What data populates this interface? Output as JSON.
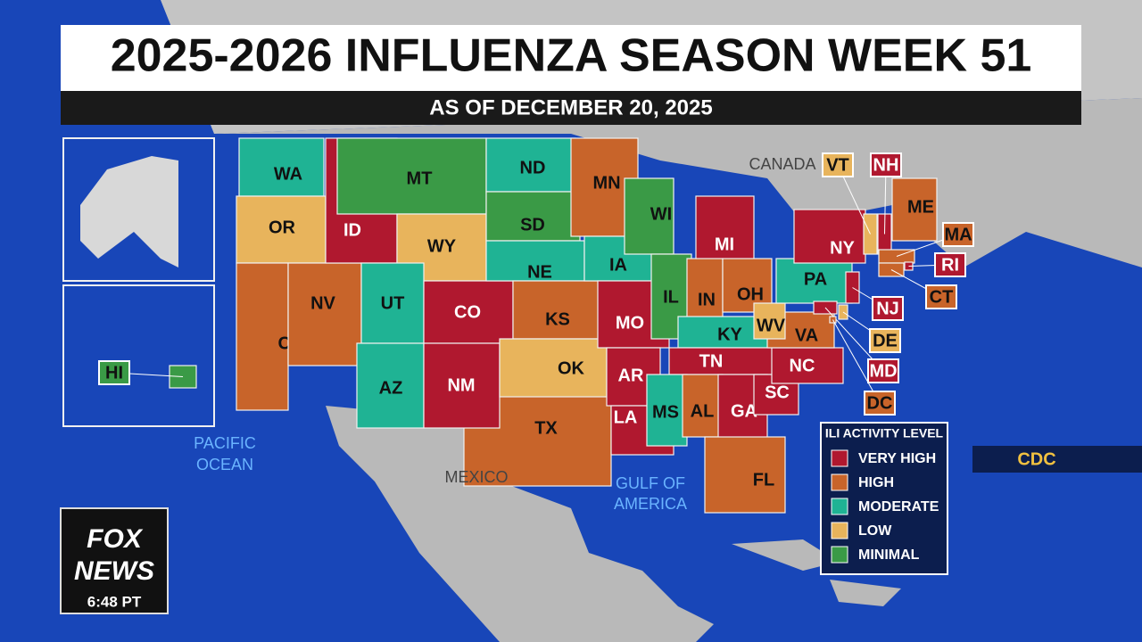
{
  "header": {
    "title": "2025-2026 INFLUENZA SEASON WEEK 51",
    "subtitle": "AS OF DECEMBER 20, 2025"
  },
  "states": [
    {
      "abbr": "TX",
      "color": "#c8642a"
    },
    {
      "abbr": "WA",
      "color": "#1fb394"
    },
    {
      "abbr": "OR",
      "color": "#e8b45c"
    },
    {
      "abbr": "CA",
      "color": "#c8642a"
    },
    {
      "abbr": "NV",
      "color": "#c8642a"
    },
    {
      "abbr": "ID",
      "color": "#b0182f"
    },
    {
      "abbr": "MT",
      "color": "#3a9a46"
    },
    {
      "abbr": "WY",
      "color": "#e8b45c"
    },
    {
      "abbr": "UT",
      "color": "#1fb394"
    },
    {
      "abbr": "AZ",
      "color": "#1fb394"
    },
    {
      "abbr": "CO",
      "color": "#b0182f"
    },
    {
      "abbr": "NM",
      "color": "#b0182f"
    },
    {
      "abbr": "ND",
      "color": "#1fb394"
    },
    {
      "abbr": "SD",
      "color": "#3a9a46"
    },
    {
      "abbr": "NE",
      "color": "#1fb394"
    },
    {
      "abbr": "KS",
      "color": "#c8642a"
    },
    {
      "abbr": "OK",
      "color": "#e8b45c"
    },
    {
      "abbr": "MN",
      "color": "#c8642a"
    },
    {
      "abbr": "IA",
      "color": "#1fb394"
    },
    {
      "abbr": "MO",
      "color": "#b0182f"
    },
    {
      "abbr": "AR",
      "color": "#b0182f"
    },
    {
      "abbr": "LA",
      "color": "#b0182f"
    },
    {
      "abbr": "WI",
      "color": "#3a9a46"
    },
    {
      "abbr": "IL",
      "color": "#3a9a46"
    },
    {
      "abbr": "MI",
      "color": "#b0182f"
    },
    {
      "abbr": "IN",
      "color": "#c8642a"
    },
    {
      "abbr": "OH",
      "color": "#c8642a"
    },
    {
      "abbr": "KY",
      "color": "#1fb394"
    },
    {
      "abbr": "TN",
      "color": "#b0182f"
    },
    {
      "abbr": "MS",
      "color": "#1fb394"
    },
    {
      "abbr": "AL",
      "color": "#c8642a"
    },
    {
      "abbr": "GA",
      "color": "#b0182f"
    },
    {
      "abbr": "FL",
      "color": "#c8642a"
    },
    {
      "abbr": "SC",
      "color": "#b0182f"
    },
    {
      "abbr": "NC",
      "color": "#b0182f"
    },
    {
      "abbr": "VA",
      "color": "#c8642a"
    },
    {
      "abbr": "WV",
      "color": "#e8b45c"
    },
    {
      "abbr": "PA",
      "color": "#1fb394"
    },
    {
      "abbr": "NY",
      "color": "#b0182f"
    },
    {
      "abbr": "ME",
      "color": "#c8642a"
    },
    {
      "abbr": "VT",
      "color": "#e8b45c"
    },
    {
      "abbr": "NH",
      "color": "#b0182f"
    },
    {
      "abbr": "MA",
      "color": "#c8642a"
    },
    {
      "abbr": "RI",
      "color": "#b0182f"
    },
    {
      "abbr": "CT",
      "color": "#c8642a"
    },
    {
      "abbr": "NJ",
      "color": "#b0182f"
    },
    {
      "abbr": "DE",
      "color": "#e8b45c"
    },
    {
      "abbr": "MD",
      "color": "#b0182f"
    },
    {
      "abbr": "DC",
      "color": "#c8642a"
    },
    {
      "abbr": "HI",
      "color": "#3a9a46"
    }
  ],
  "legend": {
    "title": "ILI ACTIVITY LEVEL",
    "items": [
      {
        "label": "VERY HIGH",
        "color": "#b0182f"
      },
      {
        "label": "HIGH",
        "color": "#c8642a"
      },
      {
        "label": "MODERATE",
        "color": "#1fb394"
      },
      {
        "label": "LOW",
        "color": "#e8b45c"
      },
      {
        "label": "MINIMAL",
        "color": "#3a9a46"
      }
    ]
  },
  "map_labels": [
    "CANADA",
    "MEXICO",
    "PACIFIC",
    "OCEAN",
    "GULF OF",
    "AMERICA"
  ],
  "source": "CDC",
  "logo": {
    "line1": "FOX",
    "line2": "NEWS",
    "time": "6:48 PT"
  }
}
